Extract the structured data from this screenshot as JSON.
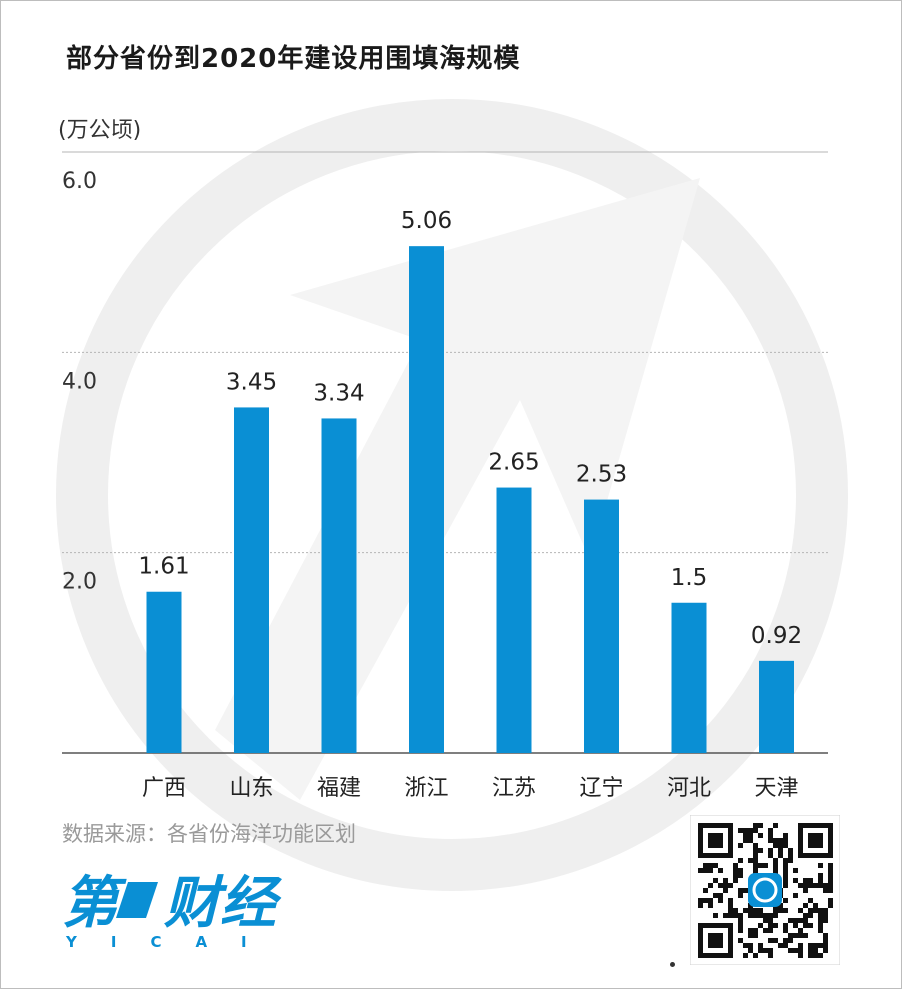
{
  "title": "部分省份到2020年建设用围填海规模",
  "unit_label": "(万公顷)",
  "chart_data": {
    "type": "bar",
    "title": "部分省份到2020年建设用围填海规模",
    "ylabel": "(万公顷)",
    "xlabel": "",
    "ylim": [
      0,
      6
    ],
    "yticks": [
      2.0,
      4.0,
      6.0
    ],
    "ytick_labels": [
      "2.0",
      "4.0",
      "6.0"
    ],
    "categories": [
      "广西",
      "山东",
      "福建",
      "浙江",
      "江苏",
      "辽宁",
      "河北",
      "天津"
    ],
    "values": [
      1.61,
      3.45,
      3.34,
      5.06,
      2.65,
      2.53,
      1.5,
      0.92
    ],
    "value_labels": [
      "1.61",
      "3.45",
      "3.34",
      "5.06",
      "2.65",
      "2.53",
      "1.5",
      "0.92"
    ],
    "grid": true,
    "bar_color": "#0a8fd4"
  },
  "source": "数据来源：各省份海洋功能区划",
  "logo": {
    "main": "第一财经",
    "sub": "YICAI",
    "color": "#0a8fd4"
  }
}
